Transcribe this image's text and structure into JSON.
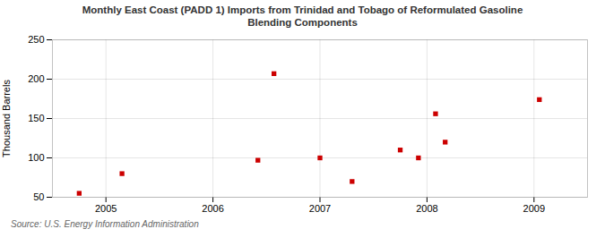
{
  "chart_data": {
    "type": "scatter",
    "title": "Monthly East Coast (PADD 1) Imports from Trinidad and Tobago of Reformulated Gasoline",
    "subtitle": "Blending Components",
    "ylabel": "Thousand Barrels",
    "annotations": [
      "Source: U.S. Energy Information Administration"
    ],
    "x": [
      2004.75,
      2005.15,
      2006.42,
      2006.57,
      2007.0,
      2007.3,
      2007.75,
      2007.92,
      2008.08,
      2008.17,
      2009.05
    ],
    "values": [
      55,
      80,
      97,
      207,
      100,
      70,
      110,
      100,
      156,
      120,
      174
    ],
    "color": "#cc0000",
    "marker": "square",
    "xlim": [
      2004.5,
      2009.5
    ],
    "xticks": [
      2005,
      2006,
      2007,
      2008,
      2009
    ],
    "ylim": [
      50,
      250
    ],
    "yticks": [
      50,
      100,
      150,
      200,
      250
    ],
    "grid": true
  }
}
